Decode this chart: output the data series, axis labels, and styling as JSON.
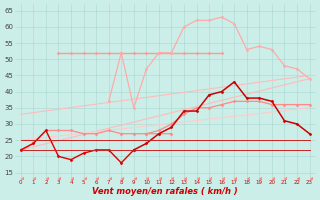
{
  "background_color": "#cceee8",
  "grid_color": "#aad8d4",
  "xlabel": "Vent moyen/en rafales ( km/h )",
  "xlabel_color": "#cc0000",
  "xlabel_fontsize": 6,
  "ylim": [
    13,
    67
  ],
  "xlim": [
    -0.5,
    23.5
  ],
  "yticks": [
    15,
    20,
    25,
    30,
    35,
    40,
    45,
    50,
    55,
    60,
    65
  ],
  "xtick_labels": [
    "0",
    "1",
    "2",
    "3",
    "4",
    "5",
    "6",
    "7",
    "8",
    "9",
    "10",
    "11",
    "12",
    "13",
    "14",
    "15",
    "16",
    "17",
    "18",
    "19",
    "20",
    "21",
    "22",
    "23"
  ],
  "series": [
    {
      "x": [
        0,
        23
      ],
      "y": [
        22,
        44
      ],
      "color": "#ffbbbb",
      "lw": 0.8,
      "marker": null,
      "ms": 0
    },
    {
      "x": [
        0,
        23
      ],
      "y": [
        33,
        45
      ],
      "color": "#ffbbbb",
      "lw": 0.8,
      "marker": null,
      "ms": 0
    },
    {
      "x": [
        0,
        23
      ],
      "y": [
        25,
        35
      ],
      "color": "#ffcccc",
      "lw": 0.8,
      "marker": null,
      "ms": 0
    },
    {
      "x": [
        3,
        4,
        5,
        6,
        7,
        8,
        9,
        10,
        11,
        12,
        13,
        14,
        15,
        16
      ],
      "y": [
        52,
        52,
        52,
        52,
        52,
        52,
        52,
        52,
        52,
        52,
        52,
        52,
        52,
        52
      ],
      "color": "#ff9999",
      "lw": 1.0,
      "marker": "D",
      "ms": 1.5
    },
    {
      "x": [
        7,
        8,
        9,
        10,
        11,
        12,
        13,
        14,
        15,
        16,
        17,
        18,
        19,
        20,
        21,
        22,
        23
      ],
      "y": [
        37,
        52,
        35,
        47,
        52,
        52,
        60,
        62,
        62,
        63,
        61,
        53,
        54,
        53,
        48,
        47,
        44
      ],
      "color": "#ffaaaa",
      "lw": 0.9,
      "marker": "D",
      "ms": 1.5
    },
    {
      "x": [
        0,
        1,
        2,
        3,
        4,
        5,
        6,
        7,
        8,
        9,
        10,
        11,
        12
      ],
      "y": [
        22,
        24,
        28,
        28,
        28,
        27,
        27,
        28,
        27,
        27,
        27,
        27,
        27
      ],
      "color": "#ff8888",
      "lw": 0.9,
      "marker": "D",
      "ms": 1.5
    },
    {
      "x": [
        10,
        11,
        12,
        13,
        14,
        15,
        16,
        17,
        18,
        19,
        20,
        21,
        22,
        23
      ],
      "y": [
        27,
        28,
        30,
        33,
        35,
        35,
        36,
        37,
        37,
        37,
        36,
        36,
        36,
        36
      ],
      "color": "#ff8888",
      "lw": 0.9,
      "marker": "D",
      "ms": 1.5
    },
    {
      "x": [
        0,
        1,
        2,
        3,
        4,
        5,
        6,
        7,
        8,
        9
      ],
      "y": [
        22,
        24,
        28,
        20,
        19,
        21,
        22,
        22,
        18,
        22
      ],
      "color": "#dd0000",
      "lw": 1.0,
      "marker": "D",
      "ms": 1.5
    },
    {
      "x": [
        9,
        10,
        11,
        12,
        13,
        14,
        15,
        16,
        17,
        18,
        19,
        20,
        21,
        22,
        23
      ],
      "y": [
        22,
        24,
        27,
        29,
        34,
        34,
        39,
        40,
        43,
        38,
        38,
        37,
        31,
        30,
        27
      ],
      "color": "#cc0000",
      "lw": 1.1,
      "marker": "D",
      "ms": 1.5
    },
    {
      "x": [
        0,
        23
      ],
      "y": [
        22,
        22
      ],
      "color": "#cc2222",
      "lw": 0.7,
      "marker": null,
      "ms": 0
    },
    {
      "x": [
        0,
        23
      ],
      "y": [
        25,
        25
      ],
      "color": "#cc2222",
      "lw": 0.7,
      "marker": null,
      "ms": 0
    },
    {
      "x": [
        0,
        1,
        2,
        3,
        4,
        5,
        6,
        7,
        8,
        9,
        10,
        11,
        12,
        13,
        14,
        15,
        16,
        17,
        18,
        19,
        20,
        21,
        22,
        23
      ],
      "y": [
        13,
        13,
        13,
        13,
        13,
        13,
        13,
        13,
        13,
        13,
        13,
        13,
        13,
        13,
        13,
        13,
        13,
        13,
        13,
        13,
        13,
        13,
        13,
        13
      ],
      "color": "#ff8888",
      "lw": 0.5,
      "marker": 4,
      "ms": 2.5
    }
  ]
}
